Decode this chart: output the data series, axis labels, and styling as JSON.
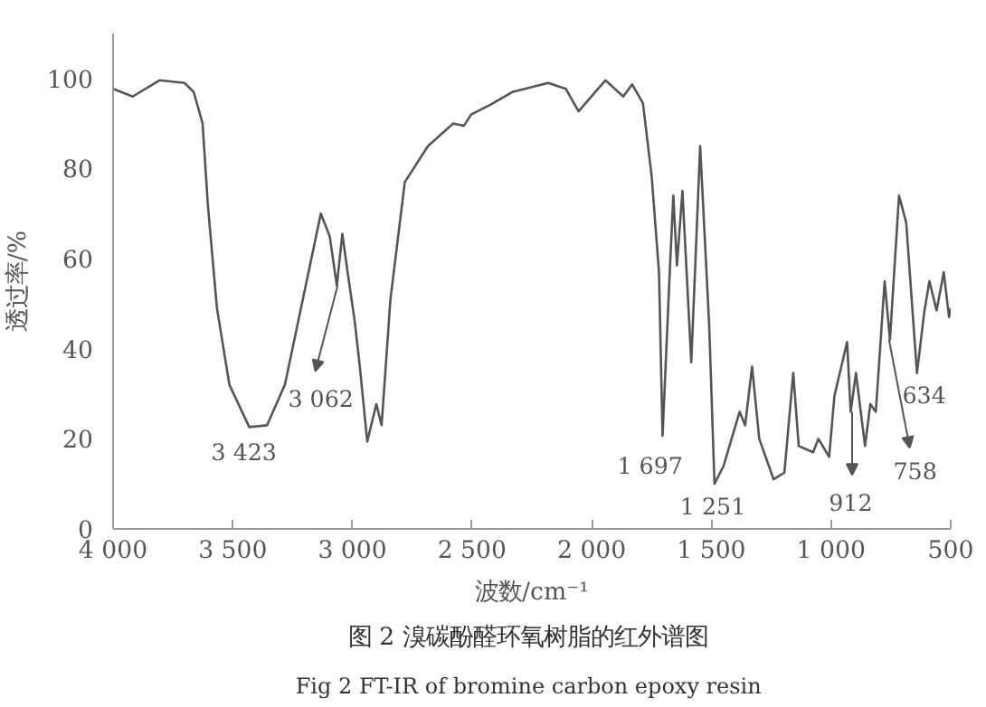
{
  "chart_data": {
    "type": "line",
    "title": "图 2  溴碳酚醛环氧树脂的红外谱图",
    "subtitle": "Fig 2  FT-IR of bromine carbon epoxy resin",
    "xlabel": "波数/cm⁻¹",
    "ylabel": "透过率/%",
    "xlim": [
      4000,
      500
    ],
    "ylim": [
      0,
      110
    ],
    "xticks": [
      {
        "value": 4000,
        "label": "4 000"
      },
      {
        "value": 3500,
        "label": "3 500"
      },
      {
        "value": 3000,
        "label": "3 000"
      },
      {
        "value": 2500,
        "label": "2 500"
      },
      {
        "value": 2000,
        "label": "2 000"
      },
      {
        "value": 1500,
        "label": "1 500"
      },
      {
        "value": 1000,
        "label": "1 000"
      },
      500
    ],
    "yticks": [
      0,
      20,
      40,
      60,
      80,
      100
    ],
    "grid": false,
    "marker": "none",
    "line_style": "solid",
    "series": [
      {
        "color": "#555555",
        "x": [
          4000,
          3918,
          3806,
          3701,
          3663,
          3626,
          3604,
          3566,
          3514,
          3431,
          3357,
          3282,
          3207,
          3132,
          3095,
          3065,
          3042,
          3020,
          2990,
          2968,
          2938,
          2900,
          2878,
          2841,
          2781,
          2684,
          2579,
          2534,
          2504,
          2429,
          2332,
          2182,
          2108,
          2055,
          1943,
          1868,
          1831,
          1786,
          1749,
          1719,
          1704,
          1674,
          1659,
          1644,
          1621,
          1584,
          1547,
          1509,
          1487,
          1449,
          1382,
          1359,
          1330,
          1300,
          1240,
          1195,
          1158,
          1135,
          1075,
          1053,
          1008,
          986,
          933,
          918,
          896,
          858,
          836,
          813,
          776,
          754,
          716,
          686,
          641,
          611,
          589,
          559,
          529,
          507,
          500
        ],
        "values": [
          97.7,
          96,
          99.6,
          99,
          97,
          90,
          72,
          49,
          32,
          22.6,
          23,
          32,
          51,
          70,
          65,
          54,
          65.5,
          57,
          46,
          35.5,
          19.4,
          27.7,
          23,
          51,
          77,
          85,
          90,
          89.5,
          92,
          94,
          97,
          99,
          97.7,
          92.7,
          99.6,
          96,
          98.7,
          94.5,
          78,
          57,
          20.7,
          57,
          74,
          58.5,
          75,
          37,
          85,
          45,
          10,
          14,
          26,
          23,
          36,
          20,
          11,
          12.5,
          34.6,
          18.4,
          17,
          20,
          16,
          29.5,
          41.5,
          26,
          34.6,
          18.4,
          27.7,
          26,
          55,
          42,
          74,
          68,
          34.6,
          48,
          55,
          48.5,
          57,
          47,
          49
        ]
      }
    ],
    "annotations": [
      {
        "text": "3 423",
        "x": 3423,
        "y": 23
      },
      {
        "text": "3 062",
        "x": 3062,
        "y": 54
      },
      {
        "text": "1 697",
        "x": 1697,
        "y": 21
      },
      {
        "text": "1 251",
        "x": 1251,
        "y": 11
      },
      {
        "text": "912",
        "x": 912,
        "y": 26
      },
      {
        "text": "758",
        "x": 758,
        "y": 42
      },
      {
        "text": "634",
        "x": 634,
        "y": 35
      }
    ]
  }
}
